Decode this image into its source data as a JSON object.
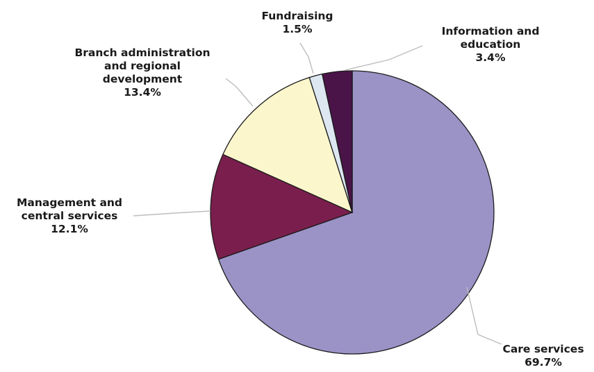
{
  "chart_data": {
    "type": "pie",
    "title": "",
    "start_angle_deg": 0,
    "direction": "clockwise",
    "legend": "none",
    "slices": [
      {
        "label_lines": [
          "Care services"
        ],
        "value": 69.7,
        "value_label": "69.7%",
        "color": "#9b93c6"
      },
      {
        "label_lines": [
          "Management and",
          "central services"
        ],
        "value": 12.1,
        "value_label": "12.1%",
        "color": "#7a1f4d"
      },
      {
        "label_lines": [
          "Branch administration",
          "and regional",
          "development"
        ],
        "value": 13.4,
        "value_label": "13.4%",
        "color": "#fbf6cc"
      },
      {
        "label_lines": [
          "Fundraising"
        ],
        "value": 1.5,
        "value_label": "1.5%",
        "color": "#dde7f1"
      },
      {
        "label_lines": [
          "Information and",
          "education"
        ],
        "value": 3.4,
        "value_label": "3.4%",
        "color": "#4a1448"
      }
    ]
  }
}
